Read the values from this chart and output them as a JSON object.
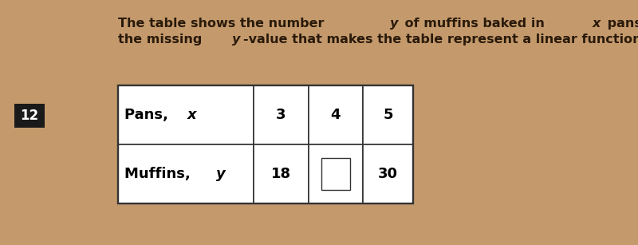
{
  "background_color": "#c49a6c",
  "title_fontsize": 11.5,
  "title_color": "#2a1a0a",
  "question_number": "12",
  "qnum_bg": "#1a1a1a",
  "qnum_color": "#ffffff",
  "qnum_fontsize": 12,
  "table_border_color": "#333333",
  "cell_fontsize": 13,
  "row0_labels": [
    "Pans, x",
    "3",
    "4",
    "5"
  ],
  "row1_labels": [
    "Muffins, y",
    "18",
    "",
    "30"
  ]
}
